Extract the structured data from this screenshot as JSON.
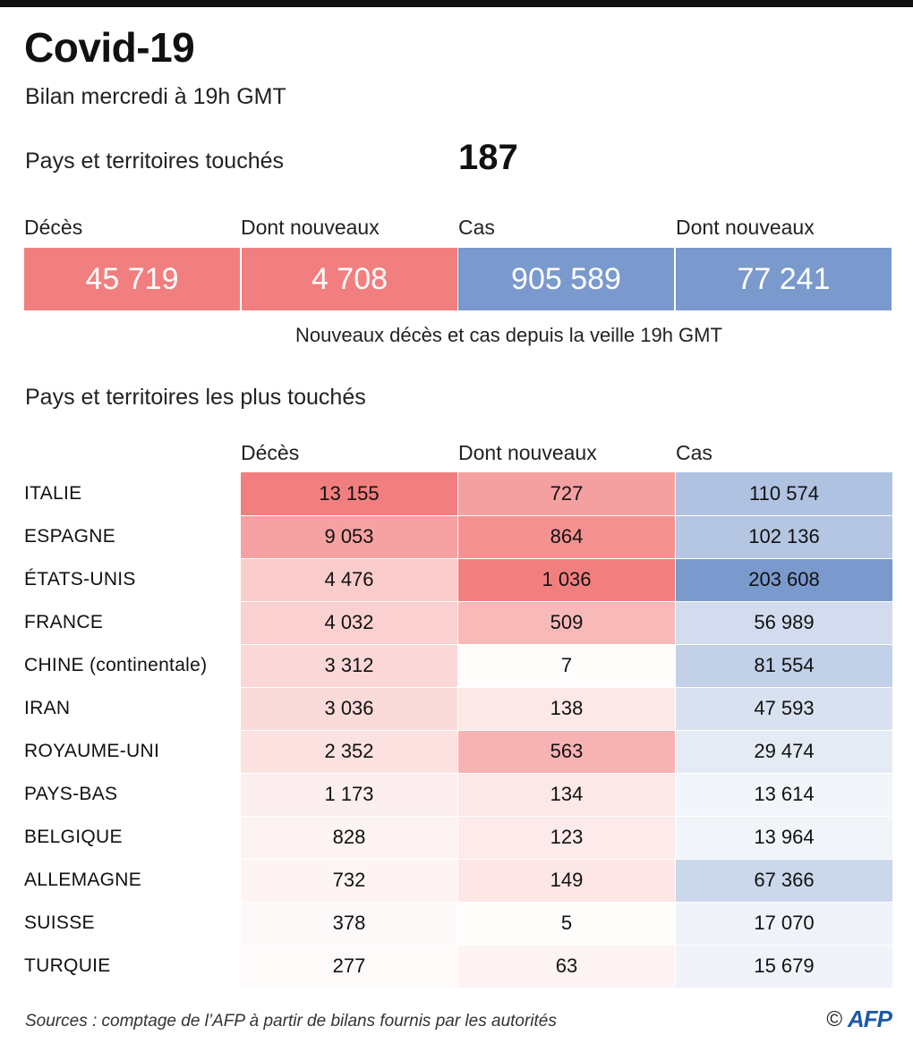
{
  "title": "Covid-19",
  "subtitle": "Bilan mercredi à 19h GMT",
  "countries_affected": {
    "label": "Pays et territoires touchés",
    "value": "187"
  },
  "kpis": [
    {
      "label": "Décès",
      "value": "45 719",
      "color": "#f27f7f"
    },
    {
      "label": "Dont nouveaux",
      "value": "4 708",
      "color": "#f27f7f"
    },
    {
      "label": "Cas",
      "value": "905 589",
      "color": "#7a99cc"
    },
    {
      "label": "Dont nouveaux",
      "value": "77 241",
      "color": "#7a99cc"
    }
  ],
  "note": "Nouveaux décès et cas depuis la veille 19h GMT",
  "table_title": "Pays et territoires les plus touchés",
  "chart_data": {
    "type": "table",
    "columns": [
      "Décès",
      "Dont nouveaux",
      "Cas"
    ],
    "rows": [
      {
        "country": "ITALIE",
        "deces": 13155,
        "nouveaux": 727,
        "cas": 110574,
        "deces_label": "13 155",
        "nouveaux_label": "727",
        "cas_label": "110 574"
      },
      {
        "country": "ESPAGNE",
        "deces": 9053,
        "nouveaux": 864,
        "cas": 102136,
        "deces_label": "9 053",
        "nouveaux_label": "864",
        "cas_label": "102 136"
      },
      {
        "country": "ÉTATS-UNIS",
        "deces": 4476,
        "nouveaux": 1036,
        "cas": 203608,
        "deces_label": "4 476",
        "nouveaux_label": "1 036",
        "cas_label": "203 608"
      },
      {
        "country": "FRANCE",
        "deces": 4032,
        "nouveaux": 509,
        "cas": 56989,
        "deces_label": "4 032",
        "nouveaux_label": "509",
        "cas_label": "56 989"
      },
      {
        "country": "CHINE (continentale)",
        "deces": 3312,
        "nouveaux": 7,
        "cas": 81554,
        "deces_label": "3 312",
        "nouveaux_label": "7",
        "cas_label": "81 554"
      },
      {
        "country": "IRAN",
        "deces": 3036,
        "nouveaux": 138,
        "cas": 47593,
        "deces_label": "3 036",
        "nouveaux_label": "138",
        "cas_label": "47 593"
      },
      {
        "country": "ROYAUME-UNI",
        "deces": 2352,
        "nouveaux": 563,
        "cas": 29474,
        "deces_label": "2 352",
        "nouveaux_label": "563",
        "cas_label": "29 474"
      },
      {
        "country": "PAYS-BAS",
        "deces": 1173,
        "nouveaux": 134,
        "cas": 13614,
        "deces_label": "1 173",
        "nouveaux_label": "134",
        "cas_label": "13 614"
      },
      {
        "country": "BELGIQUE",
        "deces": 828,
        "nouveaux": 123,
        "cas": 13964,
        "deces_label": "828",
        "nouveaux_label": "123",
        "cas_label": "13 964"
      },
      {
        "country": "ALLEMAGNE",
        "deces": 732,
        "nouveaux": 149,
        "cas": 67366,
        "deces_label": "732",
        "nouveaux_label": "149",
        "cas_label": "67 366"
      },
      {
        "country": "SUISSE",
        "deces": 378,
        "nouveaux": 5,
        "cas": 17070,
        "deces_label": "378",
        "nouveaux_label": "5",
        "cas_label": "17 070"
      },
      {
        "country": "TURQUIE",
        "deces": 277,
        "nouveaux": 63,
        "cas": 15679,
        "deces_label": "277",
        "nouveaux_label": "63",
        "cas_label": "15 679"
      }
    ],
    "colors": {
      "red": "#f27f7f",
      "blue": "#7a99cc"
    }
  },
  "sources": "Sources : comptage de l’AFP à partir de bilans fournis par les autorités",
  "logo": {
    "copyright": "©",
    "brand": "AFP",
    "icon": "afp-logo-icon"
  }
}
